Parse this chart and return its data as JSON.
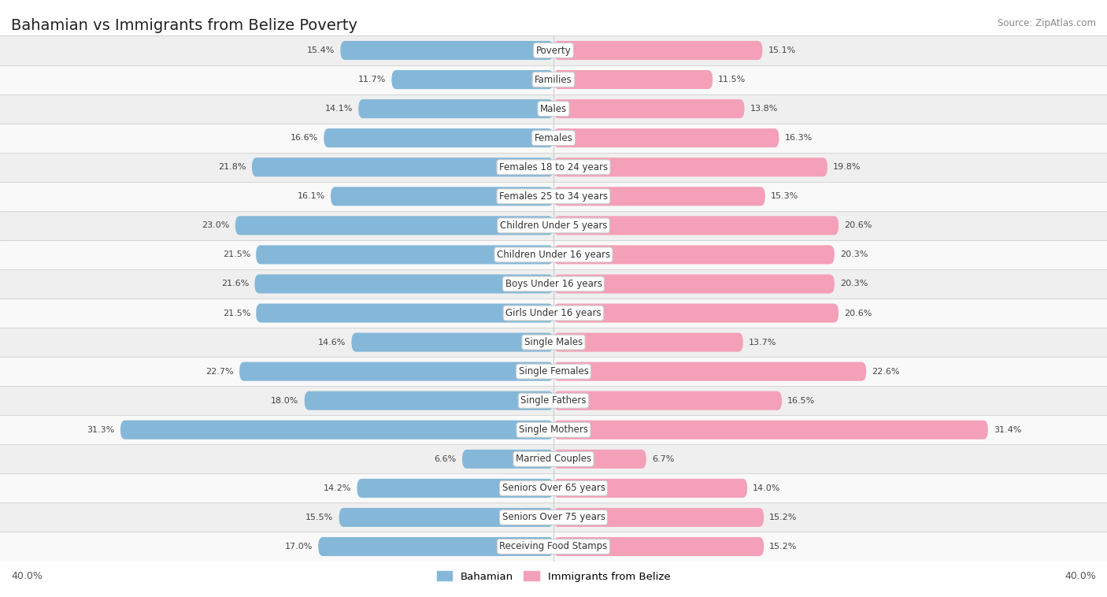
{
  "title": "Bahamian vs Immigrants from Belize Poverty",
  "source": "Source: ZipAtlas.com",
  "categories": [
    "Poverty",
    "Families",
    "Males",
    "Females",
    "Females 18 to 24 years",
    "Females 25 to 34 years",
    "Children Under 5 years",
    "Children Under 16 years",
    "Boys Under 16 years",
    "Girls Under 16 years",
    "Single Males",
    "Single Females",
    "Single Fathers",
    "Single Mothers",
    "Married Couples",
    "Seniors Over 65 years",
    "Seniors Over 75 years",
    "Receiving Food Stamps"
  ],
  "bahamian": [
    15.4,
    11.7,
    14.1,
    16.6,
    21.8,
    16.1,
    23.0,
    21.5,
    21.6,
    21.5,
    14.6,
    22.7,
    18.0,
    31.3,
    6.6,
    14.2,
    15.5,
    17.0
  ],
  "belize": [
    15.1,
    11.5,
    13.8,
    16.3,
    19.8,
    15.3,
    20.6,
    20.3,
    20.3,
    20.6,
    13.7,
    22.6,
    16.5,
    31.4,
    6.7,
    14.0,
    15.2,
    15.2
  ],
  "bahamian_color": "#85b8d8",
  "belize_color": "#f4a0b8",
  "row_bg_even": "#efefef",
  "row_bg_odd": "#f9f9f9",
  "axis_limit": 40.0,
  "label_fontsize": 8.5,
  "title_fontsize": 14,
  "value_fontsize": 8.0,
  "source_fontsize": 8.5
}
